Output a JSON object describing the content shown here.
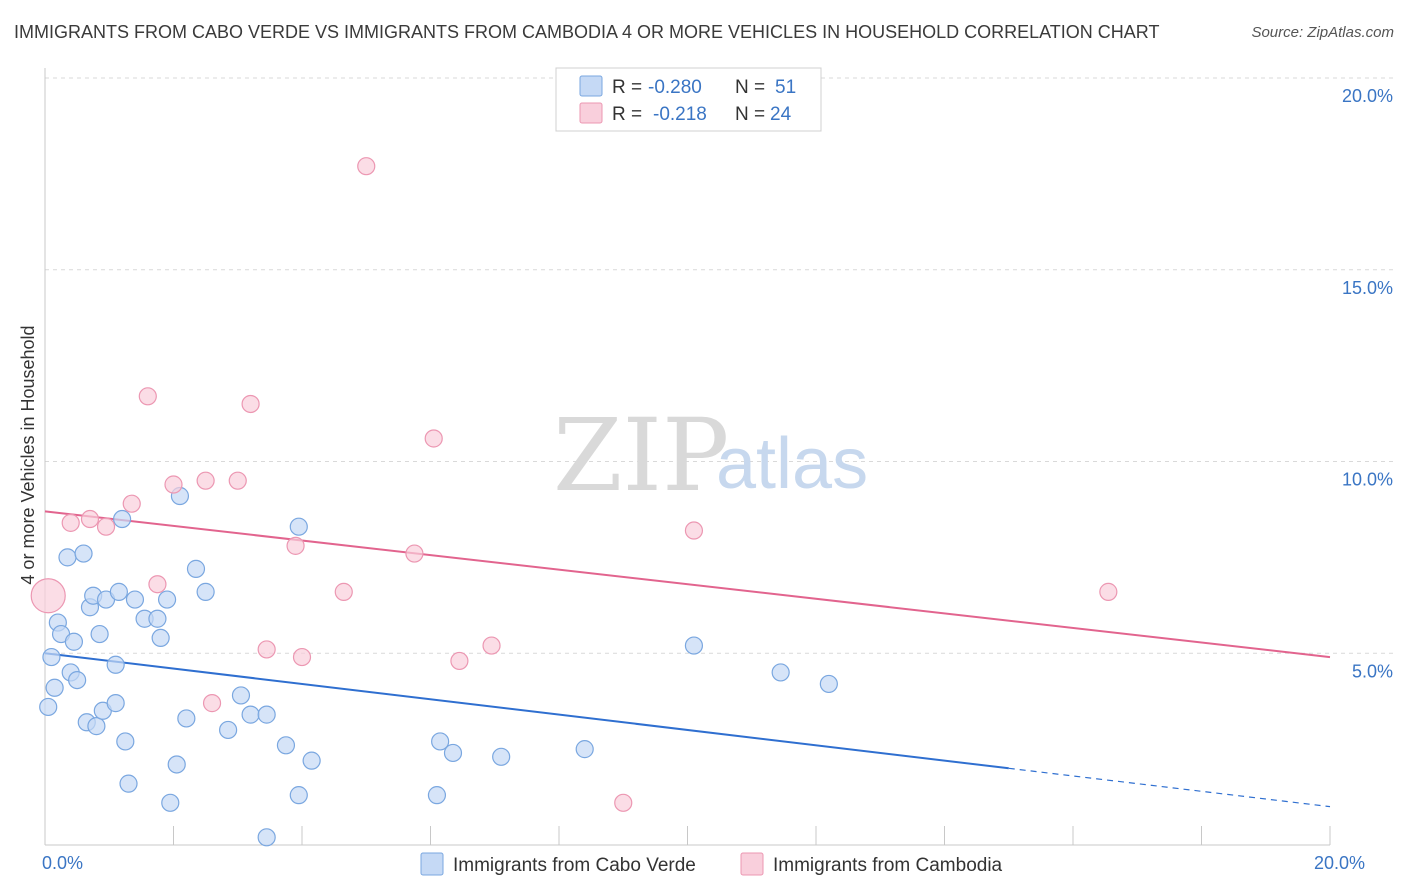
{
  "title": "IMMIGRANTS FROM CABO VERDE VS IMMIGRANTS FROM CAMBODIA 4 OR MORE VEHICLES IN HOUSEHOLD CORRELATION CHART",
  "source": "Source: ZipAtlas.com",
  "watermark": {
    "zip": "ZIP",
    "atlas": "atlas"
  },
  "colors": {
    "blue_fill": "#c5d9f5",
    "blue_stroke": "#7aa7e0",
    "blue_line": "#2f6fd0",
    "pink_fill": "#f9cfdc",
    "pink_stroke": "#ec97b2",
    "pink_line": "#e2648e",
    "tick": "#3a75c4",
    "grid": "#d9d9d9"
  },
  "legend": {
    "rows": [
      {
        "r_label": "R =",
        "r_value": "-0.280",
        "n_label": "N =",
        "n_value": "51",
        "series": "blue"
      },
      {
        "r_label": "R =",
        "r_value": "-0.218",
        "n_label": "N =",
        "n_value": "24",
        "series": "pink"
      }
    ]
  },
  "chart_data": {
    "type": "scatter",
    "title": "IMMIGRANTS FROM CABO VERDE VS IMMIGRANTS FROM CAMBODIA 4 OR MORE VEHICLES IN HOUSEHOLD CORRELATION CHART",
    "ylabel": "4 or more Vehicles in Household",
    "xlabel": "",
    "xlim": [
      0,
      20
    ],
    "ylim": [
      0,
      20
    ],
    "x_tick_labels": [
      {
        "value": 0,
        "label": "0.0%"
      },
      {
        "value": 20,
        "label": "20.0%"
      }
    ],
    "y_tick_labels": [
      {
        "value": 5,
        "label": "5.0%"
      },
      {
        "value": 10,
        "label": "10.0%"
      },
      {
        "value": 15,
        "label": "15.0%"
      },
      {
        "value": 20,
        "label": "20.0%"
      }
    ],
    "series": [
      {
        "name": "Immigrants from Cabo Verde",
        "color": "blue",
        "r": -0.28,
        "n": 51,
        "points": [
          [
            0.05,
            3.6
          ],
          [
            0.1,
            4.9
          ],
          [
            0.15,
            4.1
          ],
          [
            0.2,
            5.8
          ],
          [
            0.25,
            5.5
          ],
          [
            0.35,
            7.5
          ],
          [
            0.4,
            4.5
          ],
          [
            0.45,
            5.3
          ],
          [
            0.5,
            4.3
          ],
          [
            0.6,
            7.6
          ],
          [
            0.65,
            3.2
          ],
          [
            0.7,
            6.2
          ],
          [
            0.75,
            6.5
          ],
          [
            0.8,
            3.1
          ],
          [
            0.85,
            5.5
          ],
          [
            0.9,
            3.5
          ],
          [
            0.95,
            6.4
          ],
          [
            1.1,
            4.7
          ],
          [
            1.1,
            3.7
          ],
          [
            1.15,
            6.6
          ],
          [
            1.2,
            8.5
          ],
          [
            1.25,
            2.7
          ],
          [
            1.3,
            1.6
          ],
          [
            1.4,
            6.4
          ],
          [
            1.55,
            5.9
          ],
          [
            1.75,
            5.9
          ],
          [
            1.8,
            5.4
          ],
          [
            1.9,
            6.4
          ],
          [
            1.95,
            1.1
          ],
          [
            2.05,
            2.1
          ],
          [
            2.1,
            9.1
          ],
          [
            2.2,
            3.3
          ],
          [
            2.35,
            7.2
          ],
          [
            2.5,
            6.6
          ],
          [
            2.85,
            3.0
          ],
          [
            3.05,
            3.9
          ],
          [
            3.2,
            3.4
          ],
          [
            3.45,
            3.4
          ],
          [
            3.45,
            0.2
          ],
          [
            3.75,
            2.6
          ],
          [
            3.95,
            1.3
          ],
          [
            3.95,
            8.3
          ],
          [
            4.15,
            2.2
          ],
          [
            6.1,
            1.3
          ],
          [
            6.15,
            2.7
          ],
          [
            6.35,
            2.4
          ],
          [
            7.1,
            2.3
          ],
          [
            8.4,
            2.5
          ],
          [
            10.1,
            5.2
          ],
          [
            11.45,
            4.5
          ],
          [
            12.2,
            4.2
          ]
        ],
        "trend": {
          "x0": 0,
          "y0": 5.0,
          "x1": 15,
          "y1": 2.0,
          "dash_x1": 20,
          "dash_y1": 1.0
        }
      },
      {
        "name": "Immigrants from Cambodia",
        "color": "pink",
        "points": [
          [
            0.05,
            6.5
          ],
          [
            0.4,
            8.4
          ],
          [
            0.7,
            8.5
          ],
          [
            0.95,
            8.3
          ],
          [
            1.35,
            8.9
          ],
          [
            1.6,
            11.7
          ],
          [
            1.75,
            6.8
          ],
          [
            2.0,
            9.4
          ],
          [
            2.5,
            9.5
          ],
          [
            2.6,
            3.7
          ],
          [
            3.0,
            9.5
          ],
          [
            3.2,
            11.5
          ],
          [
            3.45,
            5.1
          ],
          [
            3.9,
            7.8
          ],
          [
            4.0,
            4.9
          ],
          [
            4.65,
            6.6
          ],
          [
            5.0,
            17.7
          ],
          [
            5.75,
            7.6
          ],
          [
            6.05,
            10.6
          ],
          [
            6.45,
            4.8
          ],
          [
            6.95,
            5.2
          ],
          [
            9.0,
            1.1
          ],
          [
            10.1,
            8.2
          ],
          [
            16.55,
            6.6
          ]
        ],
        "trend": {
          "x0": 0,
          "y0": 8.7,
          "x1": 20,
          "y1": 4.9
        }
      }
    ]
  }
}
